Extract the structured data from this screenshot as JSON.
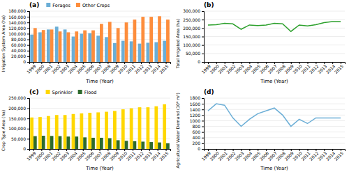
{
  "chart_data": [
    {
      "type": "bar",
      "title": "(a)",
      "categories": [
        "1999",
        "2000",
        "2001",
        "2002",
        "2003",
        "2004",
        "2005",
        "2006",
        "2007",
        "2008",
        "2009",
        "2010",
        "2011",
        "2012",
        "2013",
        "2014",
        "2015"
      ],
      "series": [
        {
          "name": "Forages",
          "color": "#6baed6",
          "values": [
            97000,
            105000,
            115000,
            125000,
            115000,
            90000,
            100000,
            102000,
            93000,
            88000,
            67000,
            75000,
            73000,
            65000,
            68000,
            70000,
            75000
          ]
        },
        {
          "name": "Other Crops",
          "color": "#fd8d3c",
          "values": [
            120000,
            113000,
            115000,
            108000,
            105000,
            108000,
            112000,
            112000,
            135000,
            142000,
            120000,
            140000,
            150000,
            160000,
            160000,
            162000,
            150000
          ]
        }
      ],
      "xlabel": "Time (Year)",
      "ylabel": "Irrigation System Area (ha)",
      "ylim": [
        0,
        180000
      ],
      "yticks": [
        0,
        {
          "value": 20000,
          "label": "20,000"
        },
        {
          "value": 40000,
          "label": "40,000"
        },
        {
          "value": 60000,
          "label": "60,000"
        },
        {
          "value": 80000,
          "label": "80,000"
        },
        {
          "value": 100000,
          "label": "100,000"
        },
        {
          "value": 120000,
          "label": "120,000"
        },
        {
          "value": 140000,
          "label": "140,000"
        },
        {
          "value": 160000,
          "label": "160,000"
        },
        {
          "value": 180000,
          "label": "180,000"
        }
      ],
      "grid": true,
      "legend": "upper left"
    },
    {
      "type": "line",
      "title": "(b)",
      "categories": [
        "1999",
        "2000",
        "2001",
        "2002",
        "2003",
        "2004",
        "2005",
        "2006",
        "2007",
        "2008",
        "2009",
        "2010",
        "2011",
        "2012",
        "2013",
        "2014",
        "2015"
      ],
      "values": [
        218000,
        220000,
        228000,
        225000,
        193000,
        218000,
        215000,
        218000,
        228000,
        225000,
        180000,
        218000,
        213000,
        220000,
        232000,
        238000,
        238000
      ],
      "color": "#2ca02c",
      "xlabel": "Time (Year)",
      "ylabel": "Total Irrigated Area (ha)",
      "ylim": [
        0,
        300000
      ],
      "yticks": [
        0,
        {
          "value": 50000,
          "label": "50,000"
        },
        {
          "value": 100000,
          "label": "100,000"
        },
        {
          "value": 150000,
          "label": "150,000"
        },
        {
          "value": 200000,
          "label": "200,000"
        },
        {
          "value": 250000,
          "label": "250,000"
        },
        {
          "value": 300000,
          "label": "300,000"
        }
      ],
      "grid": true
    },
    {
      "type": "bar",
      "title": "(c)",
      "categories": [
        "1999",
        "2000",
        "2001",
        "2002",
        "2003",
        "2004",
        "2005",
        "2006",
        "2007",
        "2008",
        "2009",
        "2010",
        "2011",
        "2012",
        "2013",
        "2014",
        "2015"
      ],
      "series": [
        {
          "name": "Sprinkler",
          "color": "#ffd700",
          "values": [
            155000,
            157000,
            162000,
            167000,
            167000,
            172000,
            175000,
            178000,
            180000,
            183000,
            187000,
            195000,
            200000,
            205000,
            205000,
            210000,
            220000
          ]
        },
        {
          "name": "Flood",
          "color": "#2d6a2d",
          "values": [
            63000,
            65000,
            64000,
            63000,
            61000,
            61000,
            57000,
            55000,
            55000,
            53000,
            43000,
            40000,
            38000,
            36000,
            34000,
            32000,
            28000
          ]
        }
      ],
      "xlabel": "Time (Year)",
      "ylabel": "Crop Type Area (ha)",
      "ylim": [
        0,
        250000
      ],
      "yticks": [
        0,
        {
          "value": 50000,
          "label": "50,000"
        },
        {
          "value": 100000,
          "label": "100,000"
        },
        {
          "value": 150000,
          "label": "150,000"
        },
        {
          "value": 200000,
          "label": "200,000"
        },
        {
          "value": 250000,
          "label": "250,000"
        }
      ],
      "grid": true,
      "legend": "upper left"
    },
    {
      "type": "line",
      "title": "(d)",
      "categories": [
        "1999",
        "2000",
        "2001",
        "2002",
        "2003",
        "2004",
        "2005",
        "2006",
        "2007",
        "2008",
        "2009",
        "2010",
        "2011",
        "2012",
        "2013",
        "2014",
        "2015"
      ],
      "values": [
        1350,
        1600,
        1550,
        1100,
        800,
        1050,
        1250,
        1350,
        1450,
        1200,
        800,
        1050,
        900,
        1100,
        1100,
        1100,
        1100
      ],
      "color": "#6baed6",
      "xlabel": "Time (Year)",
      "ylabel": "Agricultural Water Demand (10⁶ m³)",
      "ylim": [
        0,
        1800
      ],
      "yticks": [
        0,
        200,
        400,
        600,
        800,
        1000,
        1200,
        1400,
        1600,
        1800
      ],
      "grid": true
    }
  ]
}
